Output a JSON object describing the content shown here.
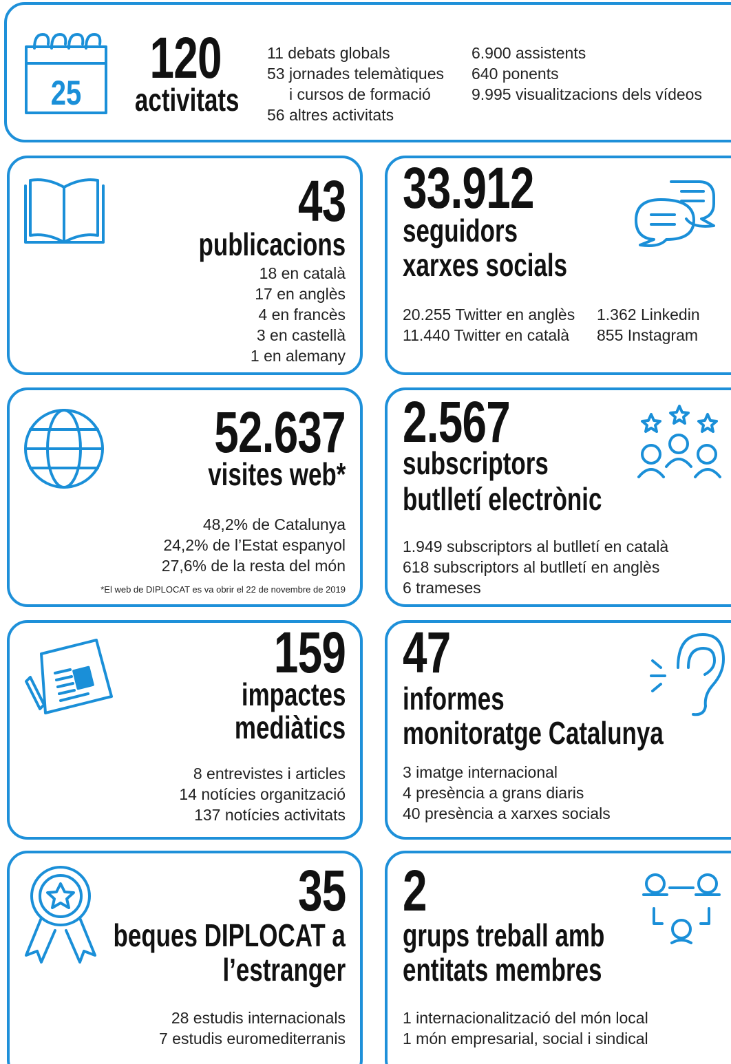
{
  "header": {
    "number": "120",
    "label": "activitats",
    "details_col1": [
      "11 debats globals",
      "53 jornades telemàtiques",
      "i cursos de formació",
      "56 altres activitats"
    ],
    "details_col2": [
      "6.900 assistents",
      "640 ponents",
      "9.995 visualitzacions dels vídeos"
    ]
  },
  "cards": [
    {
      "number": "43",
      "label": [
        "publicacions"
      ],
      "details": [
        "18 en català",
        "17 en anglès",
        "4 en francès",
        "3 en castellà",
        "1 en alemany"
      ]
    },
    {
      "number": "33.912",
      "label": [
        "seguidors",
        "xarxes socials"
      ],
      "details": [
        "20.255 Twitter en anglès",
        "11.440 Twitter en català"
      ],
      "details_col2": [
        "1.362 Linkedin",
        "855 Instagram"
      ]
    },
    {
      "number": "52.637",
      "label": [
        "visites web*"
      ],
      "details": [
        "48,2% de Catalunya",
        "24,2% de l’Estat espanyol",
        "27,6% de la resta del món"
      ],
      "footnote": "*El web de DIPLOCAT es va obrir el 22 de novembre de 2019"
    },
    {
      "number": "2.567",
      "label": [
        "subscriptors",
        "butlletí electrònic"
      ],
      "details": [
        "1.949 subscriptors al butlletí en català",
        "618 subscriptors al butlletí en anglès",
        "6 trameses"
      ]
    },
    {
      "number": "159",
      "label": [
        "impactes",
        "mediàtics"
      ],
      "details": [
        "8 entrevistes i articles",
        "14 notícies organització",
        "137 notícies activitats"
      ]
    },
    {
      "number": "47",
      "label": [
        "informes",
        "monitoratge Catalunya"
      ],
      "details": [
        "3 imatge internacional",
        "4 presència a grans diaris",
        "40 presència a xarxes socials"
      ]
    },
    {
      "number": "35",
      "label": [
        "beques DIPLOCAT a",
        "l’estranger"
      ],
      "details": [
        "28 estudis internacionals",
        "7 estudis euromediterranis"
      ]
    },
    {
      "number": "2",
      "label": [
        "grups treball amb",
        "entitats membres"
      ],
      "details": [
        "1 internacionalització del món local",
        "1 món empresarial, social i sindical"
      ]
    }
  ]
}
